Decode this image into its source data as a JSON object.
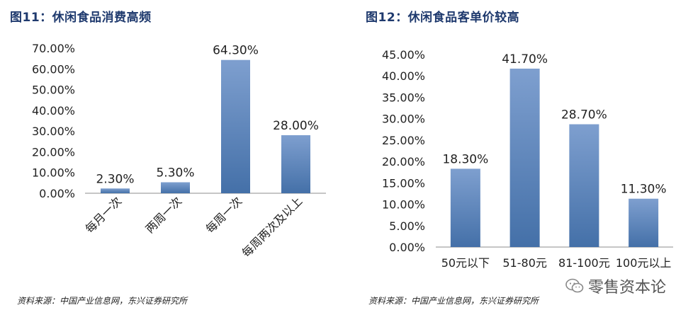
{
  "figures": [
    {
      "title": "图11：休闲食品消费高频",
      "source": "资料来源：中国产业信息网，东兴证券研究所"
    },
    {
      "title": "图12：休闲食品客单价较高",
      "source": "资料来源：中国产业信息网，东兴证券研究所"
    }
  ],
  "watermark": {
    "text": "零售资本论",
    "icon": "wechat-icon"
  },
  "colors": {
    "bar_top": "#7e9fcf",
    "bar_bottom": "#4470a8",
    "axis": "#8c8c8c",
    "title": "#1f3a6e"
  },
  "chart_data": [
    {
      "type": "bar",
      "title": "图11：休闲食品消费高频",
      "categories": [
        "每月一次",
        "两周一次",
        "每周一次",
        "每周两次及以上"
      ],
      "values": [
        2.3,
        5.3,
        64.3,
        28.0
      ],
      "value_labels": [
        "2.30%",
        "5.30%",
        "64.30%",
        "28.00%"
      ],
      "yticks": [
        "0.00%",
        "10.00%",
        "20.00%",
        "30.00%",
        "40.00%",
        "50.00%",
        "60.00%",
        "70.00%"
      ],
      "ylim": [
        0,
        70
      ],
      "category_label_rotation": "rotated-45",
      "grid": false,
      "legend": "none"
    },
    {
      "type": "bar",
      "title": "图12：休闲食品客单价较高",
      "categories": [
        "50元以下",
        "51-80元",
        "81-100元",
        "100元以上"
      ],
      "values": [
        18.3,
        41.7,
        28.7,
        11.3
      ],
      "value_labels": [
        "18.30%",
        "41.70%",
        "28.70%",
        "11.30%"
      ],
      "yticks": [
        "0.00%",
        "5.00%",
        "10.00%",
        "15.00%",
        "20.00%",
        "25.00%",
        "30.00%",
        "35.00%",
        "40.00%",
        "45.00%"
      ],
      "ylim": [
        0,
        45
      ],
      "category_label_rotation": "horizontal",
      "grid": false,
      "legend": "none"
    }
  ]
}
